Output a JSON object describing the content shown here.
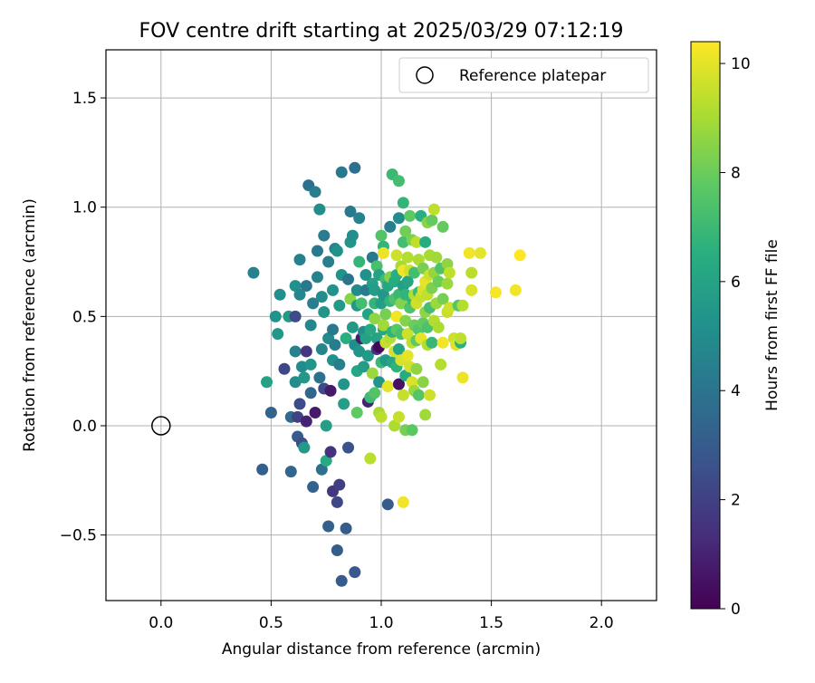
{
  "chart_data": {
    "type": "scatter",
    "title": "FOV centre drift starting at 2025/03/29 07:12:19",
    "xlabel": "Angular distance from reference (arcmin)",
    "ylabel": "Rotation from reference (arcmin)",
    "xlim": [
      -0.25,
      2.25
    ],
    "ylim": [
      -0.8,
      1.72
    ],
    "xticks": [
      0.0,
      0.5,
      1.0,
      1.5,
      2.0
    ],
    "xtick_labels": [
      "0.0",
      "0.5",
      "1.0",
      "1.5",
      "2.0"
    ],
    "yticks": [
      -0.5,
      0.0,
      0.5,
      1.0,
      1.5
    ],
    "ytick_labels": [
      "−0.5",
      "0.0",
      "0.5",
      "1.0",
      "1.5"
    ],
    "grid": true,
    "legend": {
      "placement": "top-right",
      "entries": [
        "Reference platepar"
      ]
    },
    "colormap": "viridis",
    "colorbar": {
      "label": "Hours from first FF file",
      "range": [
        0,
        10.4
      ],
      "ticks": [
        0,
        2,
        4,
        6,
        8,
        10
      ],
      "tick_labels": [
        "0",
        "2",
        "4",
        "6",
        "8",
        "10"
      ]
    },
    "reference_point": {
      "x": 0.0,
      "y": 0.0,
      "label": "Reference platepar"
    },
    "points": [
      [
        0.42,
        0.7,
        4.6
      ],
      [
        0.46,
        -0.2,
        3.2
      ],
      [
        0.48,
        0.2,
        5.9
      ],
      [
        0.5,
        0.06,
        3.3
      ],
      [
        0.52,
        0.5,
        5.3
      ],
      [
        0.53,
        0.42,
        5.5
      ],
      [
        0.54,
        0.6,
        5.1
      ],
      [
        0.56,
        0.26,
        2.2
      ],
      [
        0.58,
        0.5,
        5.6
      ],
      [
        0.59,
        -0.21,
        3.4
      ],
      [
        0.59,
        0.04,
        3.6
      ],
      [
        0.61,
        0.2,
        5.0
      ],
      [
        0.61,
        0.34,
        4.6
      ],
      [
        0.61,
        0.5,
        2.4
      ],
      [
        0.61,
        0.64,
        5.2
      ],
      [
        0.62,
        0.04,
        2.0
      ],
      [
        0.62,
        -0.05,
        3.0
      ],
      [
        0.63,
        0.1,
        2.4
      ],
      [
        0.63,
        0.6,
        4.8
      ],
      [
        0.63,
        0.76,
        4.5
      ],
      [
        0.64,
        0.27,
        5.0
      ],
      [
        0.64,
        -0.08,
        2.5
      ],
      [
        0.65,
        0.22,
        5.5
      ],
      [
        0.65,
        -0.1,
        5.6
      ],
      [
        0.66,
        0.02,
        1.0
      ],
      [
        0.66,
        0.34,
        1.6
      ],
      [
        0.66,
        0.64,
        4.2
      ],
      [
        0.67,
        1.1,
        3.8
      ],
      [
        0.68,
        0.15,
        3.4
      ],
      [
        0.68,
        0.46,
        4.8
      ],
      [
        0.68,
        0.28,
        5.4
      ],
      [
        0.69,
        0.56,
        4.4
      ],
      [
        0.69,
        -0.28,
        3.3
      ],
      [
        0.7,
        0.06,
        0.7
      ],
      [
        0.7,
        1.07,
        4.4
      ],
      [
        0.71,
        0.8,
        4.2
      ],
      [
        0.71,
        0.68,
        4.6
      ],
      [
        0.72,
        0.99,
        5.0
      ],
      [
        0.72,
        0.22,
        3.9
      ],
      [
        0.73,
        0.35,
        4.7
      ],
      [
        0.73,
        0.59,
        5.0
      ],
      [
        0.73,
        -0.2,
        3.8
      ],
      [
        0.74,
        0.87,
        4.3
      ],
      [
        0.74,
        0.52,
        5.4
      ],
      [
        0.74,
        0.17,
        2.4
      ],
      [
        0.75,
        0.0,
        5.8
      ],
      [
        0.75,
        -0.16,
        6.3
      ],
      [
        0.76,
        0.4,
        4.9
      ],
      [
        0.76,
        -0.46,
        3.2
      ],
      [
        0.76,
        0.75,
        4.4
      ],
      [
        0.77,
        -0.12,
        1.5
      ],
      [
        0.77,
        0.16,
        0.7
      ],
      [
        0.78,
        0.62,
        5.3
      ],
      [
        0.78,
        0.3,
        5.2
      ],
      [
        0.78,
        0.44,
        4.1
      ],
      [
        0.78,
        -0.3,
        1.6
      ],
      [
        0.79,
        0.81,
        4.6
      ],
      [
        0.79,
        0.37,
        4.3
      ],
      [
        0.8,
        0.8,
        5.2
      ],
      [
        0.8,
        -0.57,
        3.0
      ],
      [
        0.8,
        -0.35,
        2.2
      ],
      [
        0.81,
        -0.27,
        1.9
      ],
      [
        0.81,
        0.28,
        4.4
      ],
      [
        0.81,
        0.55,
        5.6
      ],
      [
        0.82,
        0.69,
        5.3
      ],
      [
        0.82,
        -0.71,
        3.0
      ],
      [
        0.82,
        1.16,
        4.2
      ],
      [
        0.83,
        0.1,
        5.8
      ],
      [
        0.83,
        0.19,
        5.4
      ],
      [
        0.84,
        -0.47,
        3.0
      ],
      [
        0.84,
        0.4,
        6.5
      ],
      [
        0.85,
        0.67,
        4.0
      ],
      [
        0.85,
        -0.1,
        2.6
      ],
      [
        0.86,
        0.58,
        8.5
      ],
      [
        0.86,
        0.98,
        4.2
      ],
      [
        0.86,
        0.84,
        5.4
      ],
      [
        0.87,
        0.87,
        5.1
      ],
      [
        0.87,
        0.45,
        5.6
      ],
      [
        0.88,
        0.37,
        5.0
      ],
      [
        0.88,
        1.18,
        3.8
      ],
      [
        0.88,
        -0.67,
        2.9
      ],
      [
        0.89,
        0.62,
        4.9
      ],
      [
        0.89,
        0.25,
        6.2
      ],
      [
        0.89,
        0.55,
        5.6
      ],
      [
        0.89,
        0.06,
        7.8
      ],
      [
        0.9,
        0.34,
        5.4
      ],
      [
        0.9,
        0.95,
        4.6
      ],
      [
        0.9,
        0.75,
        6.8
      ],
      [
        0.91,
        0.56,
        7.2
      ],
      [
        0.91,
        0.4,
        0.7
      ],
      [
        0.92,
        0.27,
        5.7
      ],
      [
        0.92,
        0.43,
        5.0
      ],
      [
        0.93,
        0.69,
        5.2
      ],
      [
        0.93,
        0.4,
        5.9
      ],
      [
        0.93,
        0.62,
        4.3
      ],
      [
        0.94,
        0.11,
        1.0
      ],
      [
        0.94,
        0.32,
        5.6
      ],
      [
        0.94,
        0.51,
        6.0
      ],
      [
        0.95,
        0.44,
        6.3
      ],
      [
        0.95,
        -0.15,
        9.3
      ],
      [
        0.95,
        0.13,
        7.1
      ],
      [
        0.96,
        0.24,
        8.8
      ],
      [
        0.96,
        0.65,
        5.9
      ],
      [
        0.96,
        0.77,
        4.2
      ],
      [
        0.97,
        0.62,
        5.7
      ],
      [
        0.97,
        0.56,
        6.8
      ],
      [
        0.97,
        0.15,
        7.5
      ],
      [
        0.97,
        0.49,
        8.6
      ],
      [
        0.98,
        0.35,
        1.5
      ],
      [
        0.98,
        0.73,
        7.3
      ],
      [
        0.98,
        0.4,
        6.0
      ],
      [
        0.99,
        0.69,
        5.9
      ],
      [
        0.99,
        0.2,
        5.4
      ],
      [
        0.99,
        0.36,
        0.2
      ],
      [
        0.99,
        0.06,
        9.0
      ],
      [
        1.0,
        0.56,
        5.8
      ],
      [
        1.0,
        0.87,
        7.5
      ],
      [
        1.0,
        0.29,
        7.0
      ],
      [
        1.0,
        0.04,
        9.3
      ],
      [
        1.01,
        0.44,
        6.3
      ],
      [
        1.01,
        0.6,
        5.5
      ],
      [
        1.01,
        0.82,
        6.8
      ],
      [
        1.01,
        0.46,
        8.9
      ],
      [
        1.01,
        0.79,
        10.1
      ],
      [
        1.02,
        0.67,
        7.1
      ],
      [
        1.02,
        0.38,
        9.5
      ],
      [
        1.02,
        0.3,
        5.6
      ],
      [
        1.02,
        0.51,
        8.2
      ],
      [
        1.03,
        0.64,
        6.2
      ],
      [
        1.03,
        -0.36,
        3.0
      ],
      [
        1.03,
        0.18,
        10.0
      ],
      [
        1.04,
        0.4,
        9.2
      ],
      [
        1.04,
        0.68,
        8.4
      ],
      [
        1.04,
        0.91,
        4.4
      ],
      [
        1.04,
        0.57,
        6.8
      ],
      [
        1.05,
        1.15,
        7.0
      ],
      [
        1.05,
        0.43,
        6.7
      ],
      [
        1.05,
        0.29,
        6.2
      ],
      [
        1.06,
        0.58,
        7.4
      ],
      [
        1.06,
        0.66,
        6.4
      ],
      [
        1.06,
        0.0,
        9.1
      ],
      [
        1.06,
        0.34,
        9.7
      ],
      [
        1.07,
        0.69,
        6.5
      ],
      [
        1.07,
        0.5,
        10.2
      ],
      [
        1.07,
        0.44,
        7.7
      ],
      [
        1.07,
        0.78,
        9.6
      ],
      [
        1.07,
        0.27,
        6.7
      ],
      [
        1.08,
        1.12,
        7.2
      ],
      [
        1.08,
        0.35,
        6.0
      ],
      [
        1.08,
        0.6,
        7.0
      ],
      [
        1.08,
        0.95,
        5.0
      ],
      [
        1.08,
        0.19,
        0.5
      ],
      [
        1.08,
        0.04,
        9.5
      ],
      [
        1.09,
        0.73,
        9.0
      ],
      [
        1.09,
        0.56,
        8.4
      ],
      [
        1.09,
        0.42,
        7.3
      ],
      [
        1.09,
        0.3,
        9.8
      ],
      [
        1.1,
        1.02,
        6.8
      ],
      [
        1.1,
        0.71,
        10.2
      ],
      [
        1.1,
        -0.35,
        10.2
      ],
      [
        1.1,
        0.84,
        7.2
      ],
      [
        1.1,
        0.64,
        5.8
      ],
      [
        1.1,
        0.14,
        9.5
      ],
      [
        1.11,
        0.48,
        8.4
      ],
      [
        1.11,
        0.23,
        6.4
      ],
      [
        1.11,
        0.89,
        8.1
      ],
      [
        1.11,
        0.6,
        6.8
      ],
      [
        1.11,
        -0.02,
        8.2
      ],
      [
        1.12,
        0.32,
        10.0
      ],
      [
        1.12,
        0.77,
        9.2
      ],
      [
        1.12,
        0.66,
        6.1
      ],
      [
        1.12,
        0.42,
        9.6
      ],
      [
        1.13,
        0.54,
        7.4
      ],
      [
        1.13,
        0.96,
        7.8
      ],
      [
        1.13,
        0.71,
        9.6
      ],
      [
        1.13,
        0.27,
        9.7
      ],
      [
        1.14,
        0.38,
        9.4
      ],
      [
        1.14,
        0.58,
        6.8
      ],
      [
        1.14,
        0.85,
        8.3
      ],
      [
        1.14,
        -0.02,
        7.7
      ],
      [
        1.14,
        0.2,
        9.8
      ],
      [
        1.15,
        0.6,
        9.2
      ],
      [
        1.15,
        0.46,
        8.0
      ],
      [
        1.15,
        0.7,
        7.2
      ],
      [
        1.15,
        0.16,
        8.8
      ],
      [
        1.16,
        0.56,
        9.6
      ],
      [
        1.16,
        0.39,
        7.8
      ],
      [
        1.16,
        0.84,
        9.4
      ],
      [
        1.16,
        0.26,
        8.6
      ],
      [
        1.17,
        0.61,
        7.0
      ],
      [
        1.17,
        0.44,
        7.6
      ],
      [
        1.17,
        0.14,
        7.6
      ],
      [
        1.17,
        0.76,
        9.1
      ],
      [
        1.18,
        0.4,
        10.0
      ],
      [
        1.18,
        0.59,
        9.5
      ],
      [
        1.18,
        0.96,
        6.5
      ],
      [
        1.19,
        0.47,
        7.9
      ],
      [
        1.19,
        0.72,
        8.2
      ],
      [
        1.19,
        0.62,
        9.8
      ],
      [
        1.19,
        0.2,
        8.5
      ],
      [
        1.2,
        0.66,
        10.0
      ],
      [
        1.2,
        0.84,
        6.4
      ],
      [
        1.2,
        0.52,
        8.6
      ],
      [
        1.2,
        0.05,
        8.9
      ],
      [
        1.21,
        0.37,
        9.2
      ],
      [
        1.21,
        0.6,
        9.4
      ],
      [
        1.21,
        0.93,
        8.5
      ],
      [
        1.21,
        0.45,
        7.4
      ],
      [
        1.22,
        0.78,
        9.0
      ],
      [
        1.22,
        0.69,
        9.6
      ],
      [
        1.22,
        0.54,
        7.2
      ],
      [
        1.22,
        0.14,
        9.6
      ],
      [
        1.23,
        0.94,
        7.9
      ],
      [
        1.23,
        0.63,
        8.3
      ],
      [
        1.23,
        0.38,
        6.9
      ],
      [
        1.24,
        0.99,
        9.4
      ],
      [
        1.24,
        0.48,
        9.2
      ],
      [
        1.24,
        0.7,
        8.7
      ],
      [
        1.25,
        0.56,
        8.8
      ],
      [
        1.25,
        0.77,
        8.9
      ],
      [
        1.26,
        0.45,
        9.1
      ],
      [
        1.26,
        0.66,
        8.0
      ],
      [
        1.27,
        0.28,
        9.2
      ],
      [
        1.27,
        0.72,
        7.4
      ],
      [
        1.28,
        0.91,
        7.9
      ],
      [
        1.28,
        0.58,
        8.2
      ],
      [
        1.28,
        0.38,
        10.2
      ],
      [
        1.3,
        0.74,
        8.6
      ],
      [
        1.3,
        0.52,
        9.5
      ],
      [
        1.3,
        0.65,
        8.8
      ],
      [
        1.31,
        0.7,
        9.4
      ],
      [
        1.31,
        0.54,
        9.6
      ],
      [
        1.33,
        0.4,
        9.6
      ],
      [
        1.34,
        0.37,
        9.9
      ],
      [
        1.35,
        0.55,
        7.6
      ],
      [
        1.36,
        0.38,
        6.6
      ],
      [
        1.36,
        0.4,
        9.4
      ],
      [
        1.37,
        0.22,
        10.1
      ],
      [
        1.37,
        0.55,
        9.2
      ],
      [
        1.4,
        0.79,
        10.2
      ],
      [
        1.41,
        0.7,
        9.3
      ],
      [
        1.41,
        0.62,
        9.8
      ],
      [
        1.45,
        0.79,
        10.0
      ],
      [
        1.52,
        0.61,
        10.3
      ],
      [
        1.61,
        0.62,
        10.2
      ],
      [
        1.63,
        0.78,
        10.4
      ]
    ]
  }
}
